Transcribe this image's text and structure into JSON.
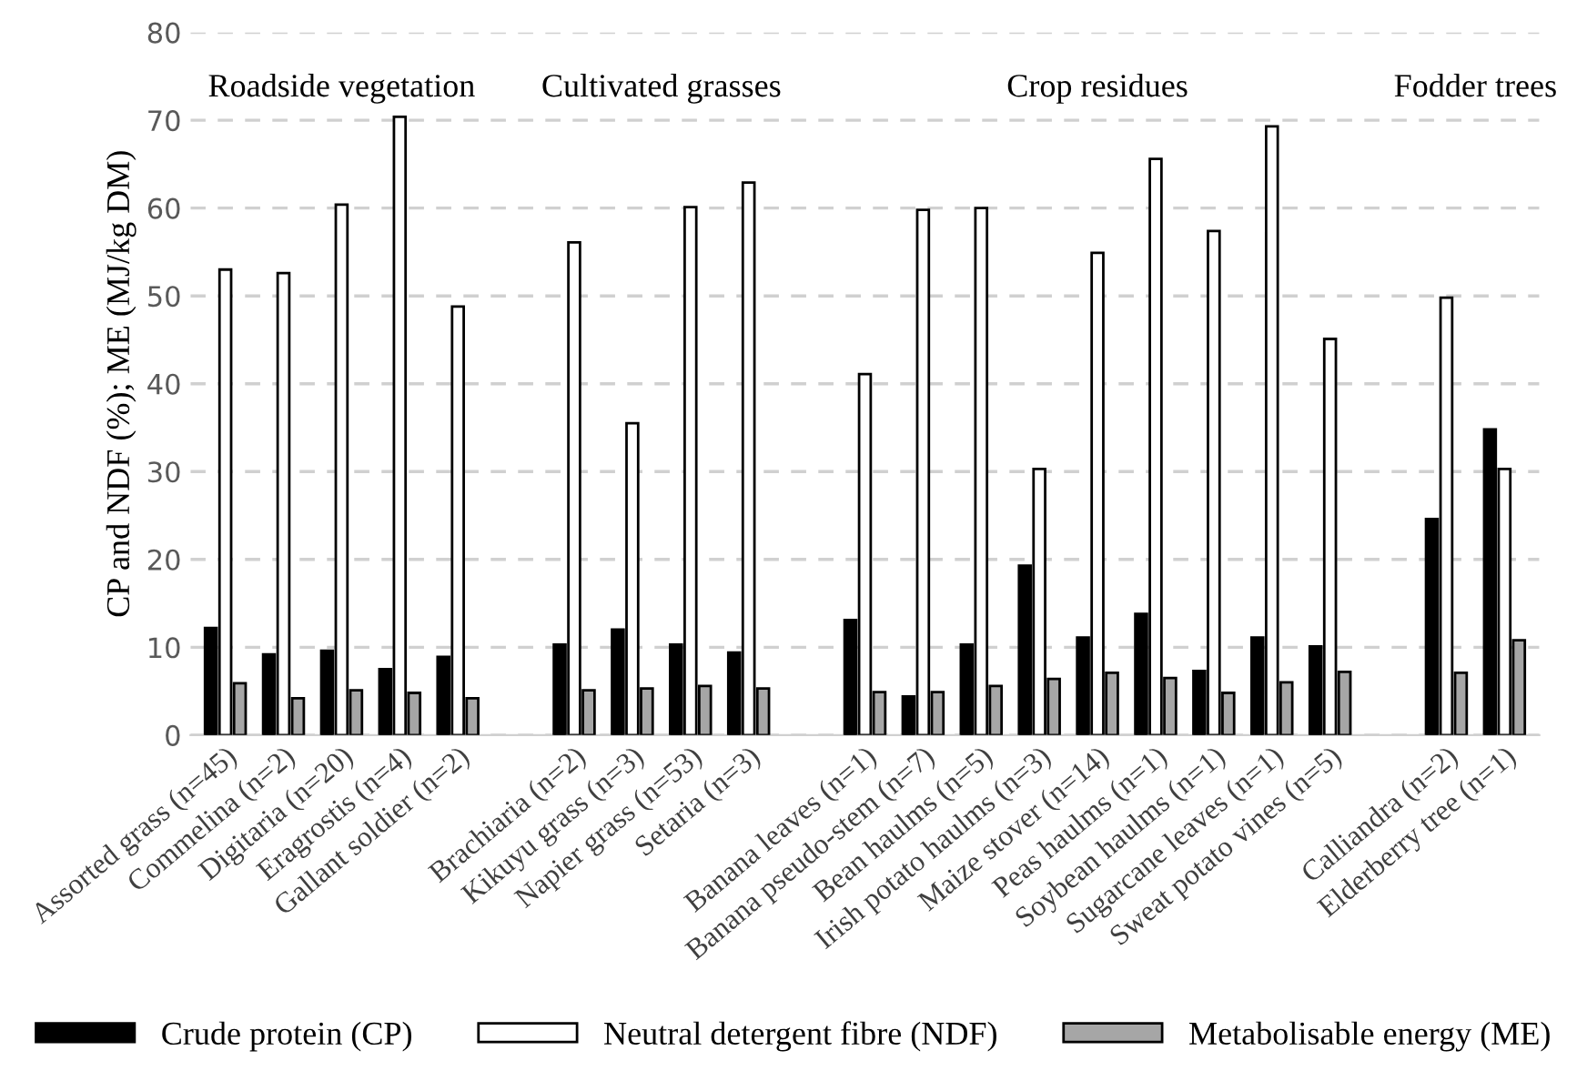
{
  "chart_data": {
    "type": "bar",
    "ylabel": "CP and NDF (%); ME (MJ/kg DM)",
    "categories": [
      "Assorted grass (n=45)",
      "Commelina (n=2)",
      "Digitaria (n=20)",
      "Eragrostis (n=4)",
      "Gallant soldier (n=2)",
      null,
      "Brachiaria (n=2)",
      "Kikuyu grass (n=3)",
      "Napier grass (n=53)",
      "Setaria (n=3)",
      null,
      "Banana leaves (n=1)",
      "Banana pseudo-stem (n=7)",
      "Bean haulms (n=5)",
      "Irish potato haulms (n=3)",
      "Maize stover (n=14)",
      "Peas haulms (n=1)",
      "Soybean haulms (n=1)",
      "Sugarcane leaves (n=1)",
      "Sweat potato vines (n=5)",
      null,
      "Calliandra (n=2)",
      "Elderberry tree (n=1)"
    ],
    "series": [
      {
        "name": "Crude protein (CP)",
        "color": "#000000",
        "values": [
          12.2,
          9.2,
          9.6,
          7.5,
          8.9,
          null,
          10.3,
          12.0,
          10.3,
          9.4,
          null,
          13.1,
          4.4,
          10.3,
          19.3,
          11.1,
          13.8,
          7.3,
          11.1,
          10.1,
          null,
          24.6,
          34.8
        ]
      },
      {
        "name": "Neutral detergent fibre (NDF)",
        "color": "#ffffff",
        "values": [
          53.0,
          52.6,
          60.4,
          70.4,
          48.8,
          null,
          56.1,
          35.5,
          60.1,
          62.9,
          null,
          41.1,
          59.8,
          60.0,
          30.3,
          54.9,
          65.6,
          57.4,
          69.3,
          45.1,
          null,
          49.8,
          30.3
        ]
      },
      {
        "name": "Metabolisable energy (ME)",
        "color": "#a6a6a6",
        "values": [
          5.9,
          4.2,
          5.1,
          4.8,
          4.2,
          null,
          5.1,
          5.3,
          5.6,
          5.3,
          null,
          4.9,
          4.9,
          5.6,
          6.4,
          7.1,
          6.5,
          4.8,
          6.0,
          7.2,
          null,
          7.1,
          10.8
        ]
      }
    ],
    "annotations": [
      "Roadside vegetation",
      "Cultivated grasses",
      "Crop residues",
      "Fodder trees"
    ],
    "ylim": [
      0,
      80
    ],
    "yticks": [
      0,
      10,
      20,
      30,
      40,
      50,
      60,
      70,
      80
    ],
    "grid": "y",
    "legend": "bottom"
  }
}
